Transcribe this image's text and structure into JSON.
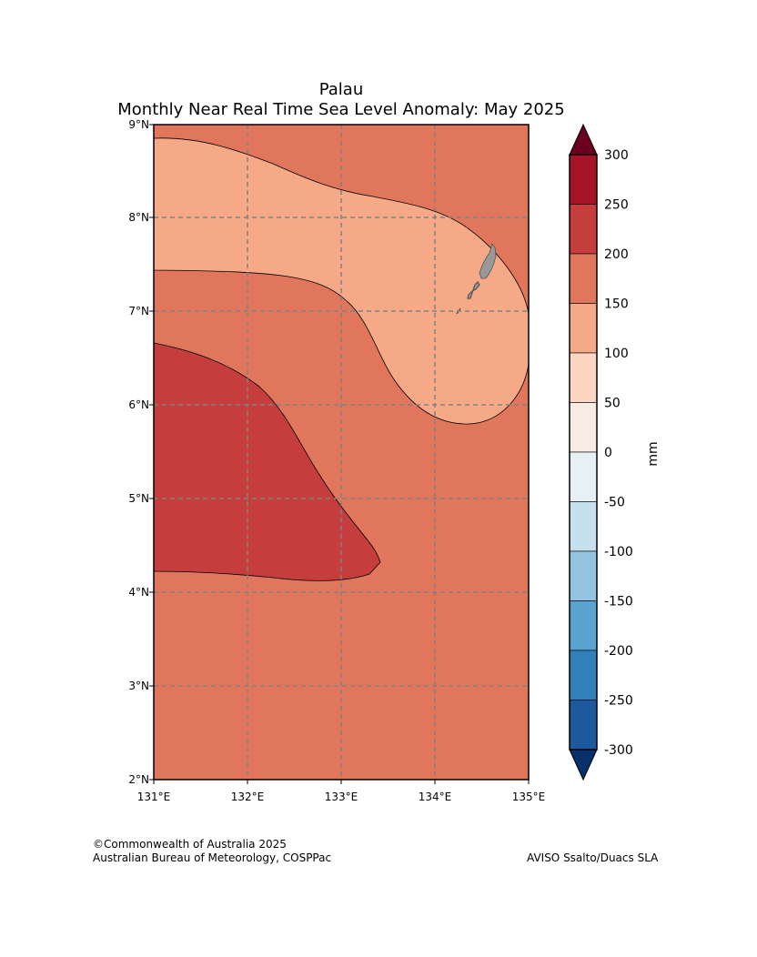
{
  "title": {
    "line1": "Palau",
    "line2": "Monthly Near Real Time Sea Level Anomaly: May 2025"
  },
  "map": {
    "region": "Palau",
    "lon_ticks": [
      "131°E",
      "132°E",
      "133°E",
      "134°E",
      "135°E"
    ],
    "lat_ticks": [
      "2°N",
      "3°N",
      "4°N",
      "5°N",
      "6°N",
      "7°N",
      "8°N",
      "9°N"
    ],
    "lon_range": [
      131,
      135
    ],
    "lat_range": [
      2,
      9
    ],
    "gridlines": true,
    "land_color": "#999999",
    "contours": [
      {
        "level_range": [
          150,
          200
        ],
        "color": "#e0775d"
      },
      {
        "level_range": [
          100,
          150
        ],
        "color": "#f5a987"
      },
      {
        "level_range": [
          200,
          250
        ],
        "color": "#c53e3d"
      }
    ]
  },
  "colorbar": {
    "unit": "mm",
    "tick_labels": [
      "300",
      "250",
      "200",
      "150",
      "100",
      "50",
      "0",
      "-50",
      "-100",
      "-150",
      "-200",
      "-250",
      "-300"
    ],
    "band_colors": [
      "#a51429",
      "#c53e3d",
      "#e0775d",
      "#f5a987",
      "#fdd6c3",
      "#f8ebe4",
      "#e6f0f5",
      "#c6e0ee",
      "#94c4df",
      "#5ba3cf",
      "#3180bc",
      "#1c5a9d"
    ],
    "over_color": "#6b0020",
    "under_color": "#08306b"
  },
  "footer": {
    "copyright_line1": "©Commonwealth of Australia 2025",
    "copyright_line2": "Australian Bureau of Meteorology, COSPPac",
    "data_source": "AVISO Ssalto/Duacs SLA"
  }
}
